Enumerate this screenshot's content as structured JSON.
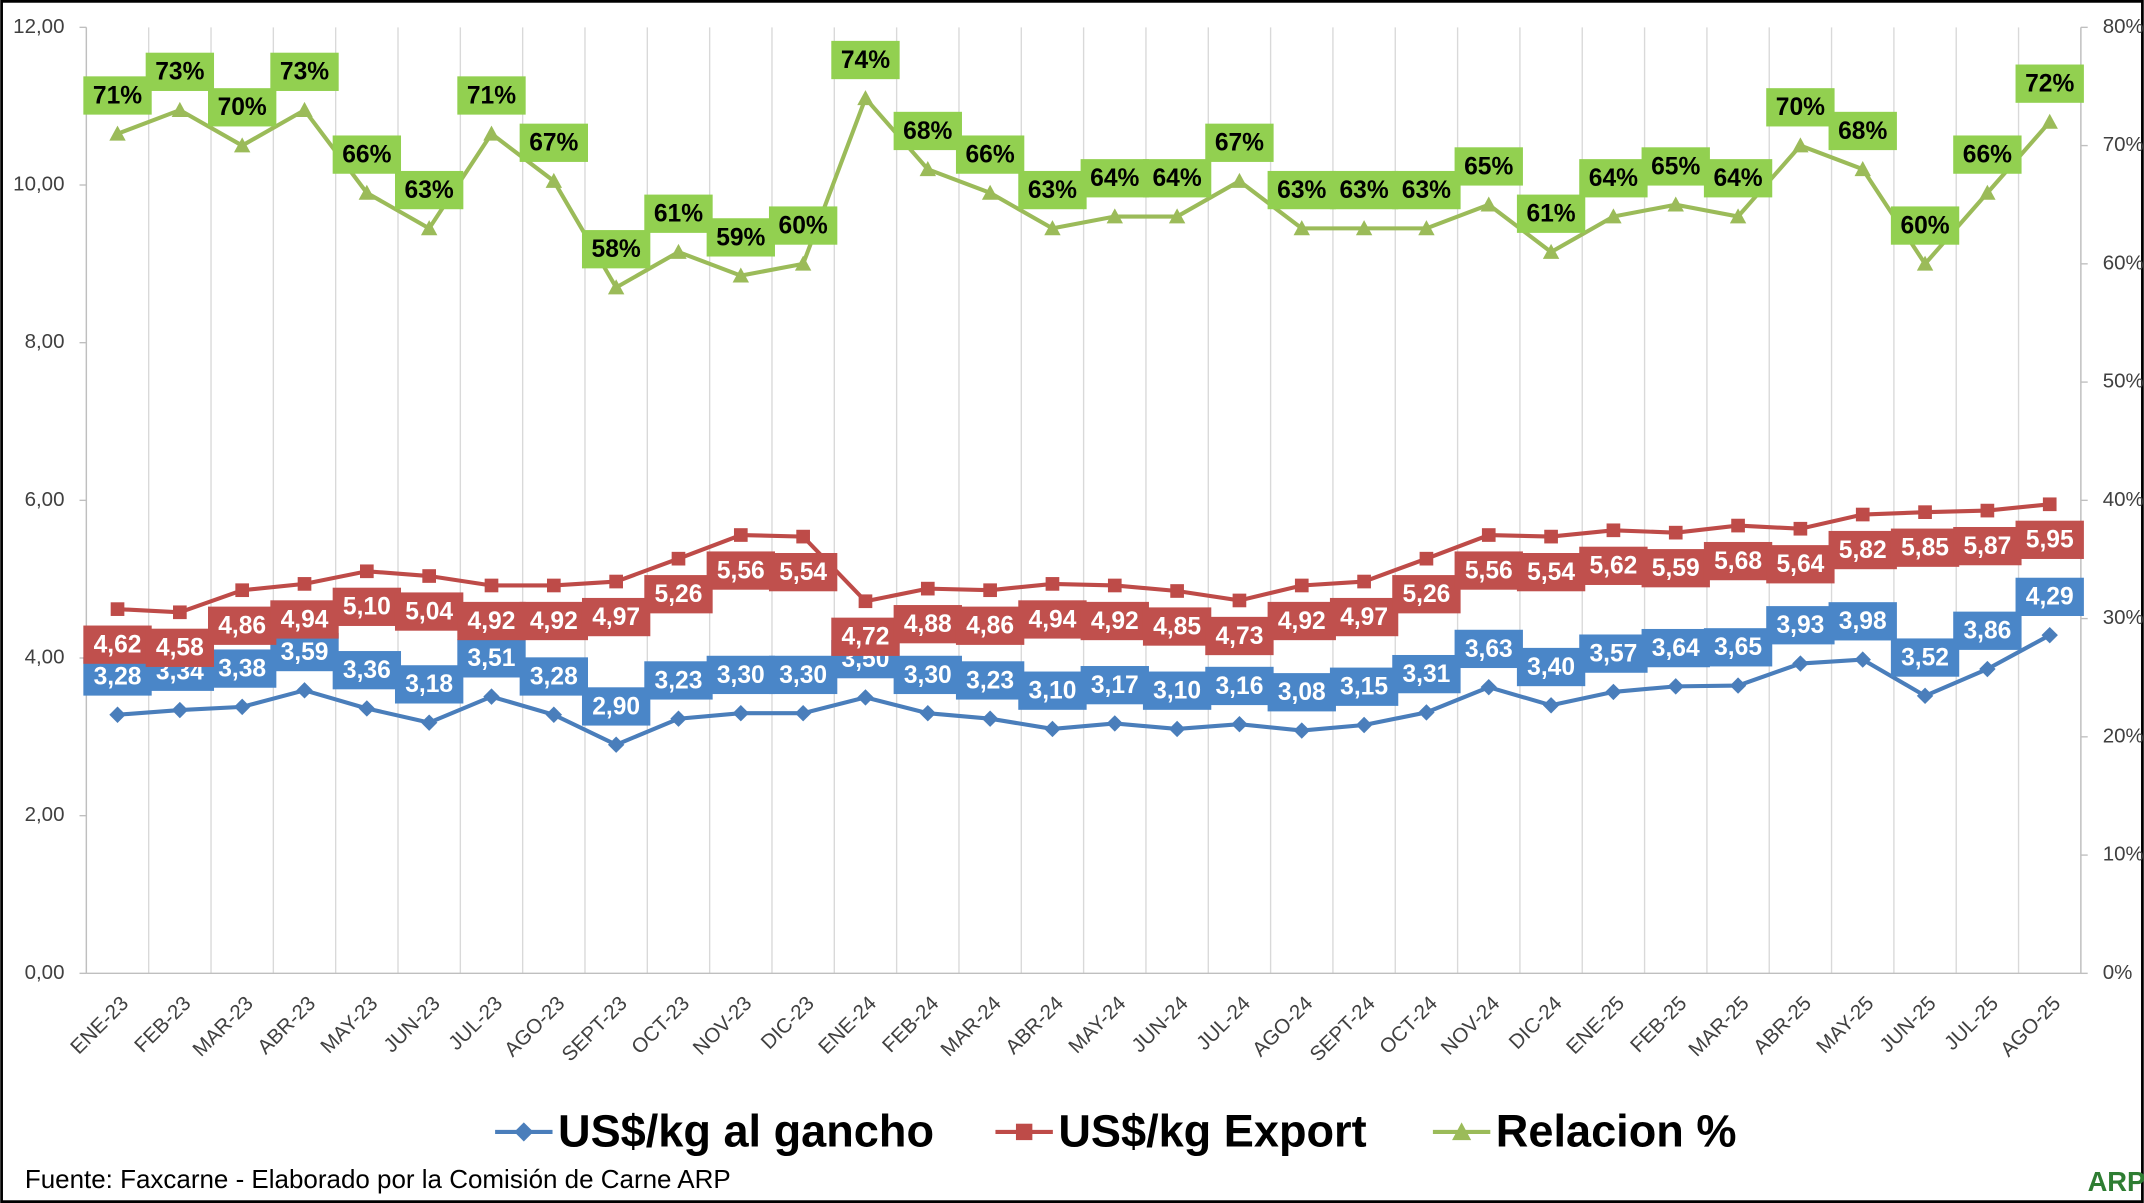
{
  "chart_data": {
    "type": "line",
    "categories": [
      "ENE-23",
      "FEB-23",
      "MAR-23",
      "ABR-23",
      "MAY-23",
      "JUN-23",
      "JUL-23",
      "AGO-23",
      "SEPT-23",
      "OCT-23",
      "NOV-23",
      "DIC-23",
      "ENE-24",
      "FEB-24",
      "MAR-24",
      "ABR-24",
      "MAY-24",
      "JUN-24",
      "JUL-24",
      "AGO-24",
      "SEPT-24",
      "OCT-24",
      "NOV-24",
      "DIC-24",
      "ENE-25",
      "FEB-25",
      "MAR-25",
      "ABR-25",
      "MAY-25",
      "JUN-25",
      "JUL-25",
      "AGO-25"
    ],
    "series": [
      {
        "name": "US$/kg al gancho",
        "color": "#4a7ebb",
        "marker": "diamond",
        "values": [
          3.28,
          3.34,
          3.38,
          3.59,
          3.36,
          3.18,
          3.51,
          3.28,
          2.9,
          3.23,
          3.3,
          3.3,
          3.5,
          3.3,
          3.23,
          3.1,
          3.17,
          3.1,
          3.16,
          3.08,
          3.15,
          3.31,
          3.63,
          3.4,
          3.57,
          3.64,
          3.65,
          3.93,
          3.98,
          3.52,
          3.86,
          4.29
        ],
        "value_labels": [
          "3,28",
          "3,34",
          "3,38",
          "3,59",
          "3,36",
          "3,18",
          "3,51",
          "3,28",
          "2,90",
          "3,23",
          "3,30",
          "3,30",
          "3,50",
          "3,30",
          "3,23",
          "3,10",
          "3,17",
          "3,10",
          "3,16",
          "3,08",
          "3,15",
          "3,31",
          "3,63",
          "3,40",
          "3,57",
          "3,64",
          "3,65",
          "3,93",
          "3,98",
          "3,52",
          "3,86",
          "4,29"
        ]
      },
      {
        "name": "US$/kg Export",
        "color": "#be4b48",
        "marker": "square",
        "values": [
          4.62,
          4.58,
          4.86,
          4.94,
          5.1,
          5.04,
          4.92,
          4.92,
          4.97,
          5.26,
          5.56,
          5.54,
          4.72,
          4.88,
          4.86,
          4.94,
          4.92,
          4.85,
          4.73,
          4.92,
          4.97,
          5.26,
          5.56,
          5.54,
          5.62,
          5.59,
          5.68,
          5.64,
          5.82,
          5.85,
          5.87,
          5.95
        ],
        "value_labels": [
          "4,62",
          "4,58",
          "4,86",
          "4,94",
          "5,10",
          "5,04",
          "4,92",
          "4,92",
          "4,97",
          "5,26",
          "5,56",
          "5,54",
          "4,72",
          "4,88",
          "4,86",
          "4,94",
          "4,92",
          "4,85",
          "4,73",
          "4,92",
          "4,97",
          "5,26",
          "5,56",
          "5,54",
          "5,62",
          "5,59",
          "5,68",
          "5,64",
          "5,82",
          "5,85",
          "5,87",
          "5,95"
        ]
      },
      {
        "name": "Relacion %",
        "color": "#9bbb59",
        "marker": "triangle",
        "axis": "y2",
        "values": [
          71,
          73,
          70,
          73,
          66,
          63,
          71,
          67,
          58,
          61,
          59,
          60,
          74,
          68,
          66,
          63,
          64,
          64,
          67,
          63,
          63,
          63,
          65,
          61,
          64,
          65,
          64,
          70,
          68,
          60,
          66,
          72
        ],
        "value_labels": [
          "71%",
          "73%",
          "70%",
          "73%",
          "66%",
          "63%",
          "71%",
          "67%",
          "58%",
          "61%",
          "59%",
          "60%",
          "74%",
          "68%",
          "66%",
          "63%",
          "64%",
          "64%",
          "67%",
          "63%",
          "63%",
          "63%",
          "65%",
          "61%",
          "64%",
          "65%",
          "64%",
          "70%",
          "68%",
          "60%",
          "66%",
          "72%"
        ]
      }
    ],
    "ylim": [
      0,
      12
    ],
    "yticks": [
      {
        "value": 0,
        "label": "0,00"
      },
      {
        "value": 2,
        "label": "2,00"
      },
      {
        "value": 4,
        "label": "4,00"
      },
      {
        "value": 6,
        "label": "6,00"
      },
      {
        "value": 8,
        "label": "8,00"
      },
      {
        "value": 10,
        "label": "10,00"
      },
      {
        "value": 12,
        "label": "12,00"
      }
    ],
    "y2lim": [
      0,
      80
    ],
    "y2ticks": [
      {
        "value": 0,
        "label": "0%"
      },
      {
        "value": 10,
        "label": "10%"
      },
      {
        "value": 20,
        "label": "20%"
      },
      {
        "value": 30,
        "label": "30%"
      },
      {
        "value": 40,
        "label": "40%"
      },
      {
        "value": 50,
        "label": "50%"
      },
      {
        "value": 60,
        "label": "60%"
      },
      {
        "value": 70,
        "label": "70%"
      },
      {
        "value": 80,
        "label": "80%"
      }
    ],
    "grid": true,
    "legend": "bottom",
    "source": "Fuente: Faxcarne - Elaborado por la Comisión de Carne ARP",
    "logo": "ARP"
  }
}
